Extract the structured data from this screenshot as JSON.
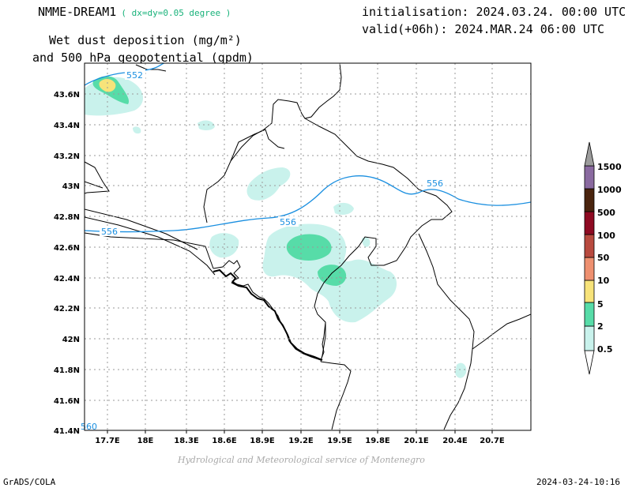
{
  "header": {
    "model": "NMME-DREAM1",
    "resolution": "( dx=dy=0.05 degree )",
    "variable_line1": "Wet dust deposition (mg/m²)",
    "variable_line2": "and 500 hPa geopotential (gpdm)",
    "init": "initialisation: 2024.03.24. 00:00 UTC",
    "valid": "valid(+06h): 2024.MAR.24 06:00 UTC"
  },
  "axes": {
    "x_ticks": [
      "17.7E",
      "18E",
      "18.3E",
      "18.6E",
      "18.9E",
      "19.2E",
      "19.5E",
      "19.8E",
      "20.1E",
      "20.4E",
      "20.7E"
    ],
    "y_ticks": [
      "43.6N",
      "43.4N",
      "43.2N",
      "43N",
      "42.8N",
      "42.6N",
      "42.4N",
      "42.2N",
      "42N",
      "41.8N",
      "41.6N",
      "41.4N"
    ]
  },
  "contours": {
    "labels": [
      "552",
      "556",
      "556",
      "556",
      "560"
    ]
  },
  "legend": {
    "levels": [
      "0.5",
      "2",
      "5",
      "10",
      "50",
      "100",
      "500",
      "1000",
      "1500"
    ],
    "colors": [
      "#c9f2ec",
      "#57dca8",
      "#f7e37a",
      "#ee9070",
      "#b84a3f",
      "#8e0a22",
      "#4a240e",
      "#3a2a1a",
      "#8a6aa0",
      "#9c9c9c"
    ]
  },
  "footer": {
    "left": "GrADS/COLA",
    "right": "2024-03-24-10:16",
    "credit": "Hydrological and Meteorological service of Montenegro"
  }
}
